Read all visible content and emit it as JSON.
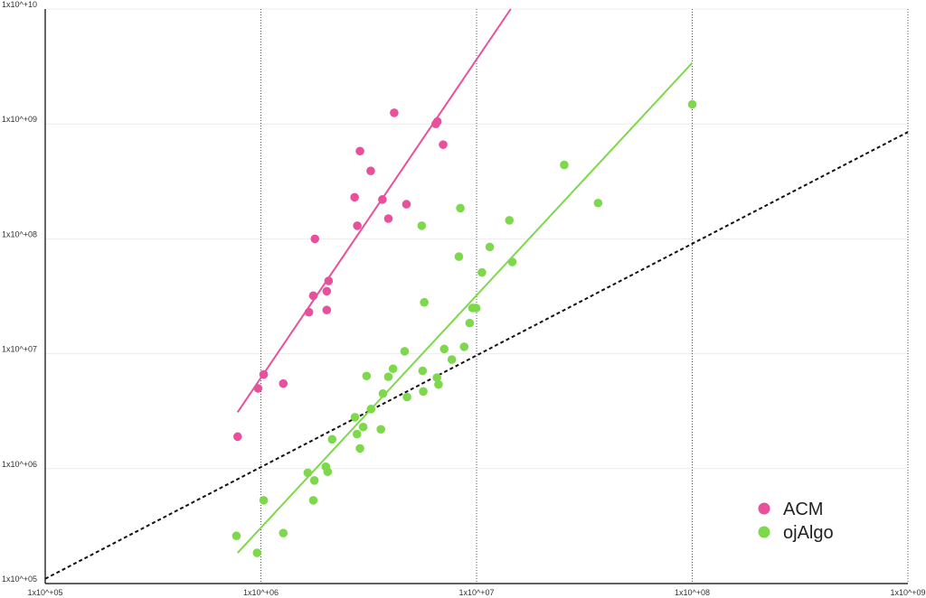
{
  "chart_data": {
    "type": "scatter",
    "title": "",
    "xlabel": "",
    "ylabel": "",
    "x_scale": "log10",
    "y_scale": "log10",
    "xlim": [
      100000,
      1000000000
    ],
    "ylim": [
      100000,
      10000000000
    ],
    "x_ticks": [
      100000,
      1000000,
      10000000,
      100000000,
      1000000000
    ],
    "x_tick_labels": [
      "1x10^+05",
      "1x10^+06",
      "1x10^+07",
      "1x10^+08",
      "1x10^+09"
    ],
    "y_ticks": [
      100000,
      1000000,
      10000000,
      100000000,
      1000000000,
      10000000000
    ],
    "y_tick_labels": [
      "1x10^+05",
      "1x10^+06",
      "1x10^+07",
      "1x10^+08",
      "1x10^+09",
      "1x10^+10"
    ],
    "grid": {
      "vertical": "dotted",
      "horizontal": "faint"
    },
    "legend_position": "bottom-right",
    "series": [
      {
        "name": "ACM",
        "color": "#e8509c",
        "points": [
          [
            780000,
            1900000
          ],
          [
            970000,
            5000000
          ],
          [
            1030000,
            6600000
          ],
          [
            1270000,
            5500000
          ],
          [
            1670000,
            23000000
          ],
          [
            1750000,
            32000000
          ],
          [
            1780000,
            100000000
          ],
          [
            2020000,
            24000000
          ],
          [
            2020000,
            35000000
          ],
          [
            2060000,
            43000000
          ],
          [
            2720000,
            230000000
          ],
          [
            2800000,
            130000000
          ],
          [
            2880000,
            580000000
          ],
          [
            3230000,
            390000000
          ],
          [
            3660000,
            220000000
          ],
          [
            3900000,
            150000000
          ],
          [
            4150000,
            1250000000
          ],
          [
            4730000,
            200000000
          ],
          [
            6470000,
            1000000000
          ],
          [
            6580000,
            1050000000
          ],
          [
            7000000,
            660000000
          ]
        ],
        "fit": {
          "x": [
            780000,
            14400000
          ],
          "y": [
            3100000,
            10000000000
          ]
        }
      },
      {
        "name": "ojAlgo",
        "color": "#7ed84c",
        "points": [
          [
            770000,
            260000
          ],
          [
            960000,
            185000
          ],
          [
            1030000,
            530000
          ],
          [
            1270000,
            275000
          ],
          [
            1650000,
            920000
          ],
          [
            1750000,
            530000
          ],
          [
            1770000,
            790000
          ],
          [
            2000000,
            1040000
          ],
          [
            2040000,
            940000
          ],
          [
            2140000,
            1800000
          ],
          [
            2730000,
            2800000
          ],
          [
            2790000,
            2000000
          ],
          [
            2880000,
            1500000
          ],
          [
            2980000,
            2300000
          ],
          [
            3090000,
            6400000
          ],
          [
            3240000,
            3300000
          ],
          [
            3600000,
            2200000
          ],
          [
            3680000,
            4500000
          ],
          [
            3900000,
            6300000
          ],
          [
            4100000,
            7400000
          ],
          [
            4640000,
            10500000
          ],
          [
            4760000,
            4200000
          ],
          [
            5620000,
            7100000
          ],
          [
            5660000,
            4700000
          ],
          [
            5720000,
            28000000
          ],
          [
            5570000,
            130000000
          ],
          [
            6550000,
            6200000
          ],
          [
            6660000,
            5400000
          ],
          [
            7080000,
            11000000
          ],
          [
            7680000,
            8900000
          ],
          [
            8280000,
            70000000
          ],
          [
            8410000,
            185000000
          ],
          [
            8760000,
            11500000
          ],
          [
            9290000,
            18500000
          ],
          [
            9580000,
            25000000
          ],
          [
            9950000,
            25000000
          ],
          [
            10590000,
            51000000
          ],
          [
            11510000,
            85000000
          ],
          [
            14190000,
            145000000
          ],
          [
            14640000,
            63000000
          ],
          [
            25500000,
            440000000
          ],
          [
            36600000,
            205000000
          ],
          [
            100000000,
            1480000000
          ]
        ],
        "fit": {
          "x": [
            780000,
            100000000
          ],
          "y": [
            185000,
            3400000000
          ]
        }
      }
    ],
    "reference_line": {
      "style": "dashed",
      "color": "#111111",
      "x": [
        100000,
        1000000000
      ],
      "y": [
        110000,
        850000000
      ]
    }
  }
}
